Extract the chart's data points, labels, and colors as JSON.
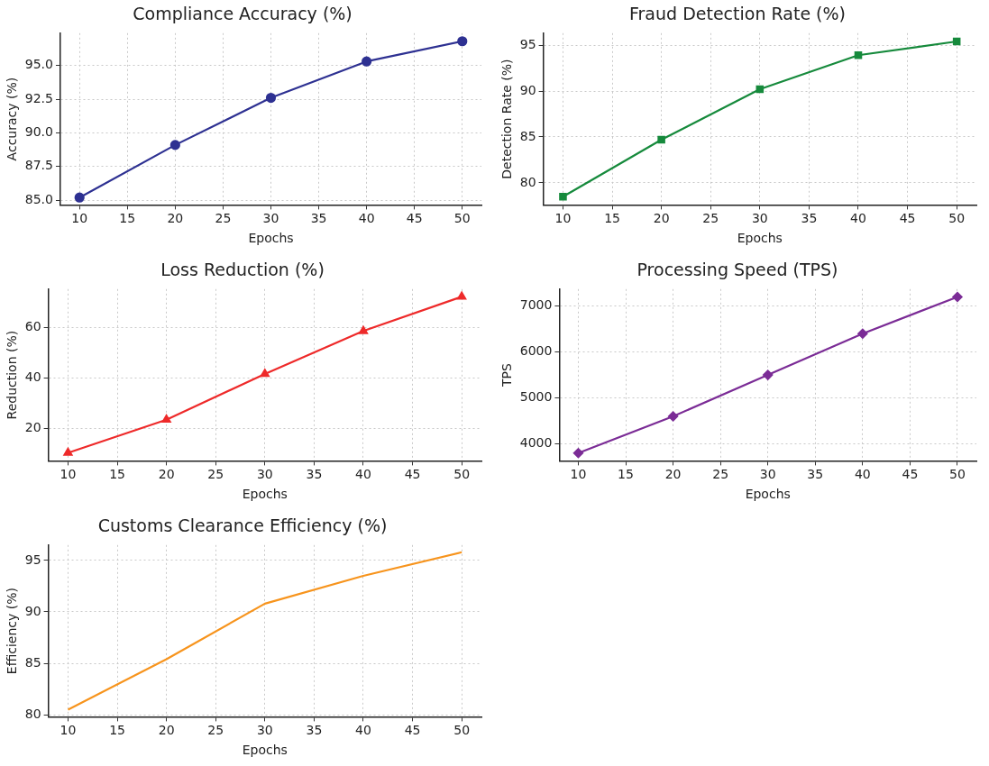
{
  "chart_data": [
    {
      "type": "line",
      "title": "Compliance Accuracy (%)",
      "xlabel": "Epochs",
      "ylabel": "Accuracy (%)",
      "x": [
        10,
        20,
        30,
        40,
        50
      ],
      "series": [
        {
          "color": "#2e3192",
          "values": [
            85.2,
            89.1,
            92.6,
            95.3,
            96.8
          ]
        }
      ],
      "xlim": [
        8,
        52
      ],
      "xticks": [
        10,
        15,
        20,
        25,
        30,
        35,
        40,
        45,
        50
      ],
      "ylim": [
        84.65,
        97.4
      ],
      "yticks": [
        {
          "value": 85,
          "label": "85.0"
        },
        87.5,
        {
          "value": 90,
          "label": "90.0"
        },
        92.5,
        {
          "value": 95,
          "label": "95.0"
        }
      ],
      "grid": true,
      "legend": false,
      "marker": "circle",
      "line_style": "solid"
    },
    {
      "type": "line",
      "title": "Fraud Detection Rate (%)",
      "xlabel": "Epochs",
      "ylabel": "Detection Rate (%)",
      "x": [
        10,
        20,
        30,
        40,
        50
      ],
      "series": [
        {
          "color": "#168a3c",
          "values": [
            78.5,
            84.7,
            90.2,
            93.9,
            95.4
          ]
        }
      ],
      "xlim": [
        8,
        52
      ],
      "xticks": [
        10,
        15,
        20,
        25,
        30,
        35,
        40,
        45,
        50
      ],
      "ylim": [
        77.6,
        96.3
      ],
      "yticks": [
        80,
        85,
        90,
        95
      ],
      "grid": true,
      "legend": false,
      "marker": "square",
      "line_style": "solid"
    },
    {
      "type": "line",
      "title": "Loss Reduction (%)",
      "xlabel": "Epochs",
      "ylabel": "Reduction (%)",
      "x": [
        10,
        20,
        30,
        40,
        50
      ],
      "series": [
        {
          "color": "#ee2a2a",
          "values": [
            10.3,
            23.4,
            41.5,
            58.5,
            72.1
          ]
        }
      ],
      "xlim": [
        8,
        52
      ],
      "xticks": [
        10,
        15,
        20,
        25,
        30,
        35,
        40,
        45,
        50
      ],
      "ylim": [
        7.1,
        75.1
      ],
      "yticks": [
        20,
        40,
        60
      ],
      "grid": true,
      "legend": false,
      "marker": "triangle",
      "line_style": "solid"
    },
    {
      "type": "line",
      "title": "Processing Speed (TPS)",
      "xlabel": "Epochs",
      "ylabel": "TPS",
      "x": [
        10,
        20,
        30,
        40,
        50
      ],
      "series": [
        {
          "color": "#7b2c96",
          "values": [
            3800,
            4600,
            5500,
            6400,
            7200
          ]
        }
      ],
      "xlim": [
        8,
        52
      ],
      "xticks": [
        10,
        15,
        20,
        25,
        30,
        35,
        40,
        45,
        50
      ],
      "ylim": [
        3630,
        7370
      ],
      "yticks": [
        4000,
        5000,
        6000,
        7000
      ],
      "grid": true,
      "legend": false,
      "marker": "diamond",
      "line_style": "solid"
    },
    {
      "type": "line",
      "title": "Customs Clearance Efficiency (%)",
      "xlabel": "Epochs",
      "ylabel": "Efficiency (%)",
      "x": [
        10,
        20,
        30,
        40,
        50
      ],
      "series": [
        {
          "color": "#f7941d",
          "values": [
            80.5,
            85.4,
            90.8,
            93.5,
            95.8
          ]
        }
      ],
      "xlim": [
        8,
        52
      ],
      "xticks": [
        10,
        15,
        20,
        25,
        30,
        35,
        40,
        45,
        50
      ],
      "ylim": [
        79.8,
        96.5
      ],
      "yticks": [
        80,
        85,
        90,
        95
      ],
      "grid": true,
      "legend": false,
      "marker": "none",
      "line_style": "solid"
    }
  ]
}
